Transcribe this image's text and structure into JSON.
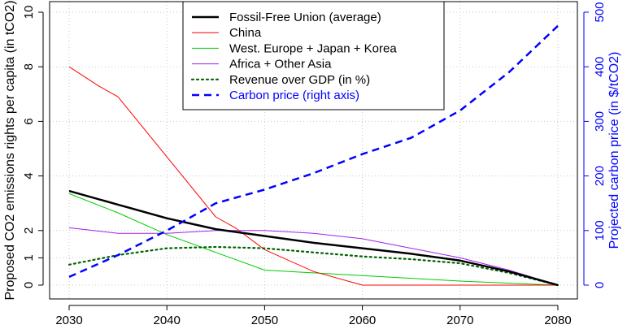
{
  "chart_data": {
    "type": "line",
    "xlabel": "",
    "ylabel_left": "Proposed CO2 emissions rights per capita (in tCO2)",
    "ylabel_right": "Projected carbon price (in $/tCO2)",
    "xlim": [
      2030,
      2080
    ],
    "ylim_left": [
      0,
      10
    ],
    "ylim_right": [
      0,
      500
    ],
    "x_ticks": [
      2030,
      2040,
      2050,
      2060,
      2070,
      2080
    ],
    "y_ticks_left": [
      0,
      1,
      2,
      4,
      6,
      8,
      10
    ],
    "y_ticks_right": [
      0,
      100,
      200,
      300,
      400,
      500
    ],
    "grid": true,
    "legend_position": "top-center",
    "right_axis_color": "#0000ff",
    "series": [
      {
        "name": "Fossil-Free Union (average)",
        "color": "#000000",
        "style": "solid-thick",
        "axis": "left",
        "x": [
          2030,
          2035,
          2040,
          2045,
          2050,
          2055,
          2060,
          2065,
          2070,
          2075,
          2080
        ],
        "values": [
          3.45,
          2.95,
          2.45,
          2.05,
          1.8,
          1.55,
          1.35,
          1.15,
          0.9,
          0.5,
          0.0
        ]
      },
      {
        "name": "China",
        "color": "#ff0000",
        "style": "solid",
        "axis": "left",
        "x": [
          2030,
          2033,
          2035,
          2040,
          2045,
          2047,
          2050,
          2055,
          2060,
          2070,
          2080
        ],
        "values": [
          8.0,
          7.3,
          6.9,
          4.7,
          2.5,
          2.1,
          1.3,
          0.5,
          0.0,
          0.0,
          0.0
        ]
      },
      {
        "name": "West. Europe + Japan + Korea",
        "color": "#00cc00",
        "style": "solid",
        "axis": "left",
        "x": [
          2030,
          2035,
          2040,
          2045,
          2050,
          2055,
          2060,
          2065,
          2070,
          2075,
          2080
        ],
        "values": [
          3.35,
          2.65,
          1.85,
          1.2,
          0.55,
          0.45,
          0.35,
          0.25,
          0.15,
          0.07,
          0.0
        ]
      },
      {
        "name": "Africa + Other Asia",
        "color": "#a020f0",
        "style": "solid",
        "axis": "left",
        "x": [
          2030,
          2035,
          2040,
          2045,
          2050,
          2055,
          2060,
          2065,
          2070,
          2075,
          2080
        ],
        "values": [
          2.1,
          1.9,
          1.9,
          2.0,
          2.0,
          1.9,
          1.7,
          1.35,
          1.0,
          0.55,
          0.0
        ]
      },
      {
        "name": "Revenue over GDP (in %)",
        "color": "#006400",
        "style": "dotted",
        "axis": "left",
        "x": [
          2030,
          2035,
          2040,
          2045,
          2050,
          2055,
          2060,
          2065,
          2070,
          2075,
          2080
        ],
        "values": [
          0.75,
          1.1,
          1.35,
          1.4,
          1.35,
          1.2,
          1.05,
          0.95,
          0.8,
          0.45,
          0.0
        ]
      },
      {
        "name": "Carbon price (right axis)",
        "color": "#0000ff",
        "style": "dashed",
        "axis": "right",
        "x": [
          2030,
          2035,
          2040,
          2045,
          2050,
          2055,
          2060,
          2065,
          2070,
          2075,
          2080
        ],
        "values": [
          15,
          55,
          100,
          150,
          175,
          205,
          240,
          270,
          320,
          390,
          475
        ]
      }
    ]
  }
}
